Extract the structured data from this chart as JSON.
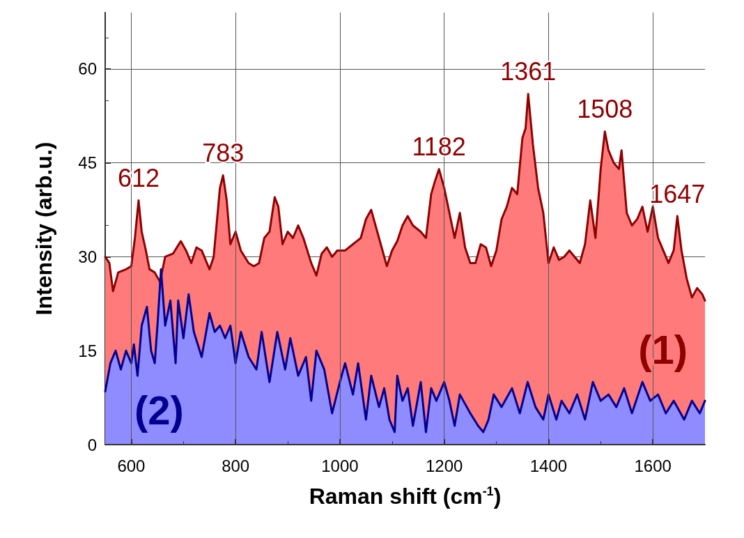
{
  "chart_data": {
    "type": "area",
    "xlabel": "Raman shift (cm$^{-1}$)",
    "ylabel": "Intensity (arb.u.)",
    "xlim": [
      550,
      1700
    ],
    "xticks": [
      600,
      800,
      1000,
      1200,
      1400,
      1600
    ],
    "ylim": [
      0,
      69
    ],
    "yticks": [
      0,
      15,
      30,
      45,
      60
    ],
    "grid": true,
    "legend": false,
    "marker": "none",
    "line_style": "solid",
    "annotations": [
      {
        "text": "612",
        "x": 614,
        "y": 39
      },
      {
        "text": "783",
        "x": 776,
        "y": 43
      },
      {
        "text": "1182",
        "x": 1190,
        "y": 44
      },
      {
        "text": "1361",
        "x": 1361,
        "y": 56
      },
      {
        "text": "1508",
        "x": 1508,
        "y": 50
      },
      {
        "text": "1647",
        "x": 1647,
        "y": 36.5
      }
    ],
    "series": [
      {
        "name": "(1)",
        "color": "#ff7b7b",
        "x": [
          550,
          558,
          565,
          575,
          590,
          600,
          607,
          614,
          620,
          628,
          635,
          645,
          655,
          665,
          680,
          695,
          705,
          715,
          725,
          735,
          750,
          758,
          770,
          776,
          783,
          790,
          800,
          810,
          825,
          835,
          845,
          855,
          865,
          875,
          882,
          890,
          900,
          910,
          920,
          930,
          945,
          955,
          965,
          975,
          985,
          995,
          1010,
          1025,
          1040,
          1050,
          1060,
          1075,
          1090,
          1100,
          1110,
          1120,
          1130,
          1140,
          1155,
          1165,
          1175,
          1182,
          1190,
          1200,
          1210,
          1220,
          1230,
          1240,
          1250,
          1260,
          1270,
          1280,
          1290,
          1300,
          1310,
          1320,
          1330,
          1340,
          1350,
          1356,
          1361,
          1370,
          1380,
          1390,
          1400,
          1410,
          1420,
          1430,
          1440,
          1450,
          1460,
          1470,
          1480,
          1490,
          1500,
          1508,
          1515,
          1525,
          1535,
          1540,
          1550,
          1560,
          1570,
          1580,
          1590,
          1600,
          1610,
          1620,
          1630,
          1640,
          1647,
          1655,
          1665,
          1675,
          1685,
          1695,
          1700
        ],
        "values": [
          30,
          29,
          24.5,
          27.5,
          28,
          28.5,
          33,
          39,
          34,
          31,
          28,
          27.5,
          26,
          30,
          30.5,
          32.5,
          31,
          29,
          31.5,
          31,
          28,
          30,
          41,
          43,
          39,
          32,
          34,
          31,
          29,
          28.5,
          29,
          33,
          34,
          39.5,
          38,
          32,
          34,
          33,
          35,
          33,
          29,
          27,
          30.5,
          31.5,
          30,
          31,
          31,
          32,
          33,
          36,
          37.5,
          33,
          28.5,
          31,
          32.5,
          35,
          36.5,
          35,
          34,
          33,
          40,
          42,
          44,
          41,
          37,
          33,
          37,
          31.5,
          29,
          29,
          32,
          31.5,
          28.5,
          31,
          36,
          38,
          41,
          40,
          49,
          50.5,
          56,
          48,
          41,
          37,
          29,
          31.5,
          29.5,
          30,
          31,
          30,
          29,
          32,
          39,
          33,
          44,
          50,
          47,
          45,
          44,
          47,
          37,
          35,
          36,
          38,
          34,
          38,
          33,
          31,
          29,
          31,
          36.5,
          31,
          26.5,
          23.5,
          25,
          24,
          23
        ]
      },
      {
        "name": "(2)",
        "color": "#8f8cff",
        "x": [
          550,
          560,
          570,
          580,
          590,
          600,
          605,
          612,
          620,
          630,
          638,
          645,
          651,
          657,
          665,
          675,
          685,
          690,
          700,
          710,
          720,
          735,
          750,
          760,
          770,
          780,
          790,
          800,
          810,
          825,
          840,
          850,
          865,
          880,
          895,
          905,
          920,
          935,
          945,
          955,
          970,
          985,
          1000,
          1010,
          1025,
          1035,
          1050,
          1060,
          1075,
          1085,
          1095,
          1105,
          1110,
          1120,
          1130,
          1140,
          1155,
          1165,
          1175,
          1185,
          1200,
          1210,
          1220,
          1230,
          1250,
          1265,
          1275,
          1285,
          1295,
          1310,
          1330,
          1345,
          1360,
          1375,
          1390,
          1400,
          1415,
          1425,
          1440,
          1455,
          1470,
          1485,
          1500,
          1515,
          1530,
          1545,
          1560,
          1580,
          1595,
          1610,
          1625,
          1640,
          1660,
          1675,
          1690,
          1700
        ],
        "values": [
          8.5,
          13,
          15,
          12,
          15,
          13,
          16,
          11,
          19,
          22,
          15,
          13,
          20,
          28,
          19,
          23,
          13,
          23,
          17,
          24,
          18,
          14,
          21,
          18,
          19,
          17,
          19,
          13,
          18,
          14,
          12,
          18,
          10,
          18,
          12,
          17,
          11,
          14,
          7,
          15,
          12,
          5,
          10,
          13,
          8,
          13,
          4,
          11,
          6,
          9,
          4,
          2,
          11,
          7,
          9,
          3,
          10,
          2,
          9,
          7,
          10,
          7,
          3,
          8,
          5,
          3,
          2,
          4,
          8,
          6,
          9,
          5,
          10,
          6,
          4,
          8,
          4,
          7,
          5,
          8,
          4,
          10,
          7,
          8,
          6,
          9,
          5,
          10,
          7,
          8,
          5,
          7,
          4,
          7,
          5,
          7
        ]
      }
    ]
  }
}
